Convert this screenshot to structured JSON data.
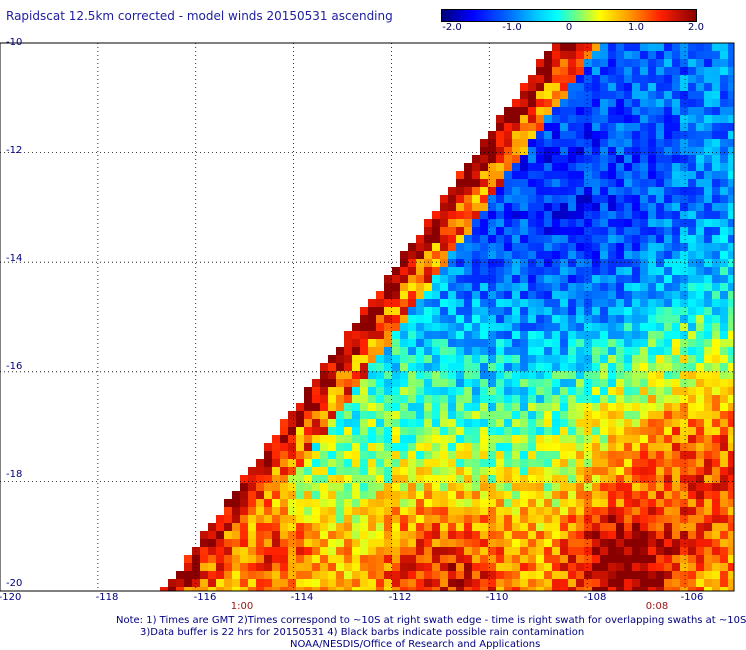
{
  "title": "Rapidscat 12.5km corrected - model winds 20150531 ascending",
  "colorbar": {
    "labels": [
      "-2.0",
      "-1.0",
      "0",
      "1.0",
      "2.0"
    ],
    "range": [
      -2.0,
      2.0
    ],
    "colors": [
      "#00007a",
      "#0000ff",
      "#00c8ff",
      "#00ffff",
      "#ffff00",
      "#ffa000",
      "#ff2000",
      "#8a0000"
    ]
  },
  "axes": {
    "lat_labels": [
      "-10",
      "-12",
      "-14",
      "-16",
      "-18",
      "-20"
    ],
    "lon_labels": [
      "-120",
      "-118",
      "-116",
      "-114",
      "-112",
      "-110",
      "-108",
      "-106"
    ],
    "lat_range": [
      -20,
      -10
    ],
    "lon_range": [
      -120,
      -105
    ],
    "grid": "dotted"
  },
  "time_labels": [
    {
      "text": "1:00",
      "lon": -114.6
    },
    {
      "text": "0:08",
      "lon": -107.1
    }
  ],
  "notes": [
    "Note: 1) Times are GMT 2)Times correspond to ~10S at right swath edge - time is right swath for overlapping swaths at ~10S",
    "3)Data buffer is 22 hrs for 20150531 4) Black barbs indicate possible rain contamination",
    "NOAA/NESDIS/Office of Research and Applications"
  ]
}
